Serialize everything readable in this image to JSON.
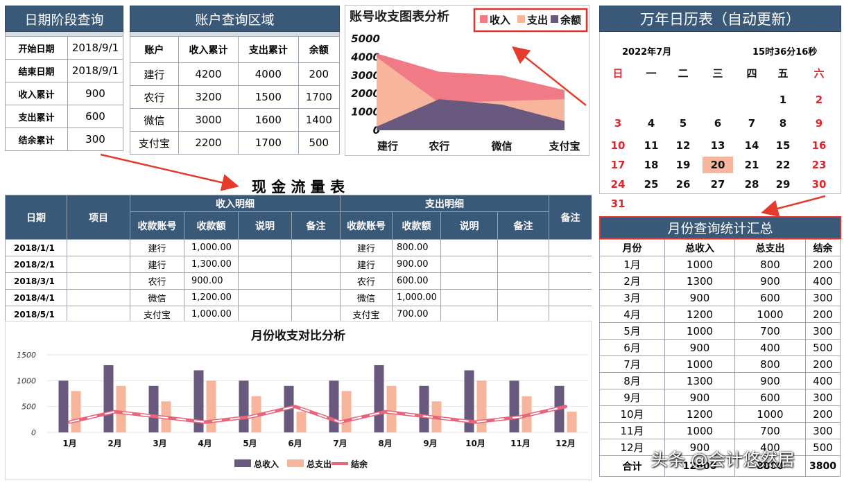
{
  "date_query": {
    "title": "日期阶段查询",
    "rows": [
      {
        "label": "开始日期",
        "value": "2018/9/1"
      },
      {
        "label": "结束日期",
        "value": "2018/9/1"
      },
      {
        "label": "收入累计",
        "value": "900"
      },
      {
        "label": "支出累计",
        "value": "600"
      },
      {
        "label": "结余累计",
        "value": "300"
      }
    ]
  },
  "account_query": {
    "title": "账户查询区域",
    "headers": [
      "账户",
      "收入累计",
      "支出累计",
      "余额"
    ],
    "rows": [
      [
        "建行",
        "4200",
        "4000",
        "200"
      ],
      [
        "农行",
        "3200",
        "1500",
        "1700"
      ],
      [
        "微信",
        "3000",
        "1600",
        "1400"
      ],
      [
        "支付宝",
        "2200",
        "1700",
        "500"
      ]
    ]
  },
  "area_chart": {
    "chart_data": {
      "type": "area",
      "title": "账号收支图表分析",
      "categories": [
        "建行",
        "农行",
        "微信",
        "支付宝"
      ],
      "yticks": [
        "5000",
        "4000",
        "3000",
        "2000",
        "1000",
        "0"
      ],
      "ylim": [
        0,
        5000
      ],
      "legend_position": "top-right",
      "series": [
        {
          "name": "收入",
          "values": [
            4200,
            3200,
            3000,
            2200
          ],
          "color": "#f07b86"
        },
        {
          "name": "支出",
          "values": [
            4000,
            1500,
            1600,
            1700
          ],
          "color": "#f7b59b"
        },
        {
          "name": "余额",
          "values": [
            200,
            1700,
            1400,
            500
          ],
          "color": "#6a597e"
        }
      ]
    }
  },
  "calendar": {
    "title": "万年日历表（自动更新）",
    "month": "2022年7月",
    "time": "15时36分16秒",
    "weekdays": [
      "日",
      "一",
      "二",
      "三",
      "四",
      "五",
      "六"
    ],
    "weeks": [
      [
        "",
        "",
        "",
        "",
        "",
        "1",
        "2"
      ],
      [
        "3",
        "4",
        "5",
        "6",
        "7",
        "8",
        "9"
      ],
      [
        "10",
        "11",
        "12",
        "13",
        "14",
        "15",
        "16"
      ],
      [
        "17",
        "18",
        "19",
        "20",
        "21",
        "22",
        "23"
      ],
      [
        "24",
        "25",
        "26",
        "27",
        "28",
        "29",
        "30"
      ],
      [
        "31",
        "",
        "",
        "",
        "",
        "",
        ""
      ]
    ],
    "highlight": "20"
  },
  "cashflow": {
    "title": "现 金 流 量 表",
    "col_date": "日期",
    "col_item": "项目",
    "income_group": "收入明细",
    "expense_group": "支出明细",
    "col_note": "备注",
    "sub_headers": [
      "收款账号",
      "收款额",
      "说明",
      "备注"
    ],
    "rows": [
      {
        "date": "2018/1/1",
        "in_acct": "建行",
        "in_amt": "1,000.00",
        "out_acct": "建行",
        "out_amt": "800.00"
      },
      {
        "date": "2018/2/1",
        "in_acct": "建行",
        "in_amt": "1,300.00",
        "out_acct": "建行",
        "out_amt": "900.00"
      },
      {
        "date": "2018/3/1",
        "in_acct": "农行",
        "in_amt": "900.00",
        "out_acct": "农行",
        "out_amt": "600.00"
      },
      {
        "date": "2018/4/1",
        "in_acct": "微信",
        "in_amt": "1,200.00",
        "out_acct": "微信",
        "out_amt": "1,000.00"
      },
      {
        "date": "2018/5/1",
        "in_acct": "支付宝",
        "in_amt": "1,000.00",
        "out_acct": "支付宝",
        "out_amt": "700.00"
      }
    ]
  },
  "monthly_chart": {
    "chart_data": {
      "type": "bar",
      "title": "月份收支对比分析",
      "categories": [
        "1月",
        "2月",
        "3月",
        "4月",
        "5月",
        "6月",
        "7月",
        "8月",
        "9月",
        "10月",
        "11月",
        "12月"
      ],
      "yticks": [
        "1500",
        "1000",
        "500",
        "0"
      ],
      "ylim": [
        0,
        1500
      ],
      "legend_position": "bottom",
      "series": [
        {
          "name": "总收入",
          "values": [
            1000,
            1300,
            900,
            1200,
            1000,
            900,
            1000,
            1300,
            900,
            1200,
            1000,
            900
          ],
          "color": "#6a597e"
        },
        {
          "name": "总支出",
          "values": [
            800,
            900,
            600,
            1000,
            700,
            400,
            800,
            900,
            600,
            1000,
            700,
            400
          ],
          "color": "#f7b59b"
        },
        {
          "name": "结余",
          "values": [
            200,
            400,
            300,
            200,
            300,
            500,
            200,
            400,
            300,
            200,
            300,
            500
          ],
          "color": "#e9647a"
        }
      ]
    }
  },
  "monthly_summary": {
    "title": "月份查询统计汇总",
    "headers": [
      "月份",
      "总收入",
      "总支出",
      "结余"
    ],
    "rows": [
      [
        "1月",
        "1000",
        "800",
        "200"
      ],
      [
        "2月",
        "1300",
        "900",
        "400"
      ],
      [
        "3月",
        "900",
        "600",
        "300"
      ],
      [
        "4月",
        "1200",
        "1000",
        "200"
      ],
      [
        "5月",
        "1000",
        "700",
        "300"
      ],
      [
        "6月",
        "900",
        "400",
        "500"
      ],
      [
        "7月",
        "1000",
        "800",
        "200"
      ],
      [
        "8月",
        "1300",
        "900",
        "400"
      ],
      [
        "9月",
        "900",
        "600",
        "300"
      ],
      [
        "10月",
        "1200",
        "1000",
        "200"
      ],
      [
        "11月",
        "1000",
        "700",
        "300"
      ],
      [
        "12月",
        "900",
        "400",
        "500"
      ]
    ],
    "total": [
      "合计",
      "12600",
      "8800",
      "3800"
    ]
  },
  "watermark": "头条 @会计悠然居"
}
